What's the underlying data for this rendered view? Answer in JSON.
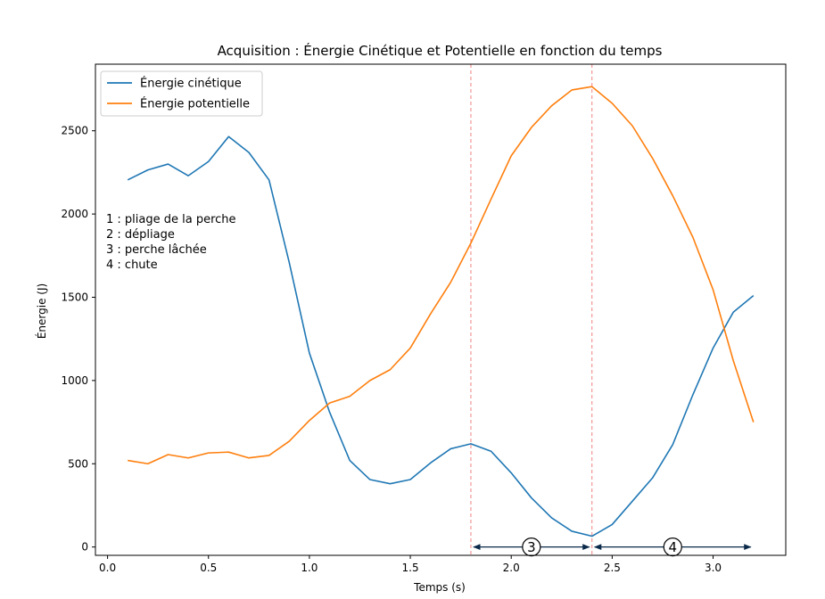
{
  "chart_data": {
    "type": "line",
    "title": "Acquisition : Énergie Cinétique et Potentielle en fonction du temps",
    "xlabel": "Temps (s)",
    "ylabel": "Énergie (J)",
    "xlim": [
      -0.06,
      3.36
    ],
    "ylim": [
      -50,
      2900
    ],
    "xticks": [
      0.0,
      0.5,
      1.0,
      1.5,
      2.0,
      2.5,
      3.0
    ],
    "xtick_labels": [
      "0.0",
      "0.5",
      "1.0",
      "1.5",
      "2.0",
      "2.5",
      "3.0"
    ],
    "yticks": [
      0,
      500,
      1000,
      1500,
      2000,
      2500
    ],
    "ytick_labels": [
      "0",
      "500",
      "1000",
      "1500",
      "2000",
      "2500"
    ],
    "grid": false,
    "legend_position": "top-left",
    "x": [
      0.1,
      0.2,
      0.3,
      0.4,
      0.5,
      0.6,
      0.7,
      0.8,
      0.9,
      1.0,
      1.1,
      1.2,
      1.3,
      1.4,
      1.5,
      1.6,
      1.7,
      1.8,
      1.9,
      2.0,
      2.1,
      2.2,
      2.3,
      2.4,
      2.5,
      2.6,
      2.7,
      2.8,
      2.9,
      3.0,
      3.1,
      3.2
    ],
    "series": [
      {
        "name": "Énergie cinétique",
        "color": "#1f77b4",
        "values": [
          2205,
          2265,
          2300,
          2230,
          2315,
          2465,
          2370,
          2205,
          1710,
          1165,
          810,
          520,
          405,
          380,
          405,
          505,
          590,
          620,
          575,
          445,
          295,
          175,
          95,
          65,
          135,
          275,
          415,
          615,
          915,
          1195,
          1410,
          1510
        ]
      },
      {
        "name": "Énergie potentielle",
        "color": "#ff7f0e",
        "values": [
          520,
          500,
          555,
          535,
          565,
          570,
          535,
          550,
          635,
          760,
          865,
          905,
          1000,
          1065,
          1195,
          1400,
          1590,
          1825,
          2090,
          2350,
          2520,
          2650,
          2745,
          2765,
          2665,
          2530,
          2335,
          2110,
          1860,
          1545,
          1120,
          750
        ]
      }
    ],
    "vlines": [
      {
        "x": 1.8,
        "color": "#f08080"
      },
      {
        "x": 2.4,
        "color": "#f08080"
      }
    ],
    "phase_arrows": [
      {
        "label": "3",
        "x_start": 1.8,
        "x_end": 2.4,
        "y": 0,
        "label_x": 2.1
      },
      {
        "label": "4",
        "x_start": 2.4,
        "x_end": 3.2,
        "y": 0,
        "label_x": 2.8
      }
    ],
    "annotation_lines": [
      "1 : pliage de la perche",
      "2 : dépliage",
      "3 : perche lâchée",
      "4 : chute"
    ]
  }
}
